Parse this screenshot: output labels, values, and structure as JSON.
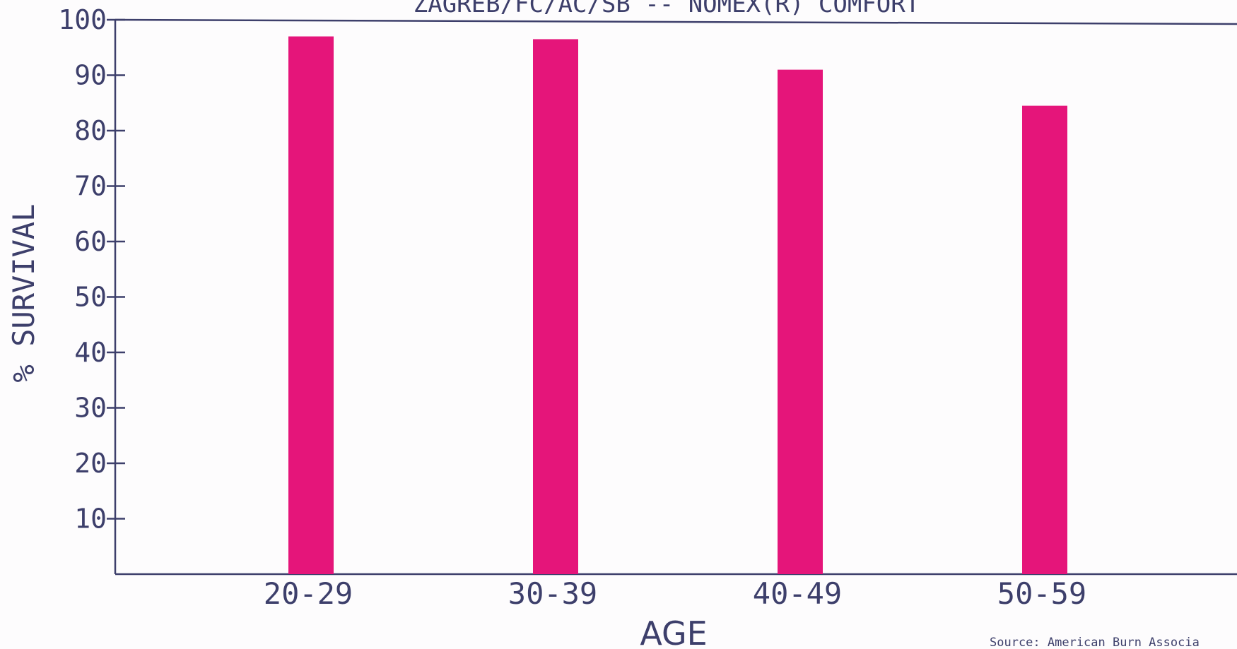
{
  "chart_data": {
    "type": "bar",
    "title": "ZAGREB/FC/AC/SB -- NOMEX(R) COMFORT",
    "xlabel": "AGE",
    "ylabel": "% SURVIVAL",
    "categories": [
      "20-29",
      "30-39",
      "40-49",
      "50-59"
    ],
    "values": [
      97,
      96.5,
      91,
      84.5
    ],
    "ylim": [
      0,
      100
    ],
    "yticks": [
      10,
      20,
      30,
      40,
      50,
      60,
      70,
      80,
      90,
      100
    ],
    "grid": false,
    "bar_color": "#e5157a",
    "axis_color": "#3d3f6b",
    "source": "Source:  American Burn Associa"
  }
}
